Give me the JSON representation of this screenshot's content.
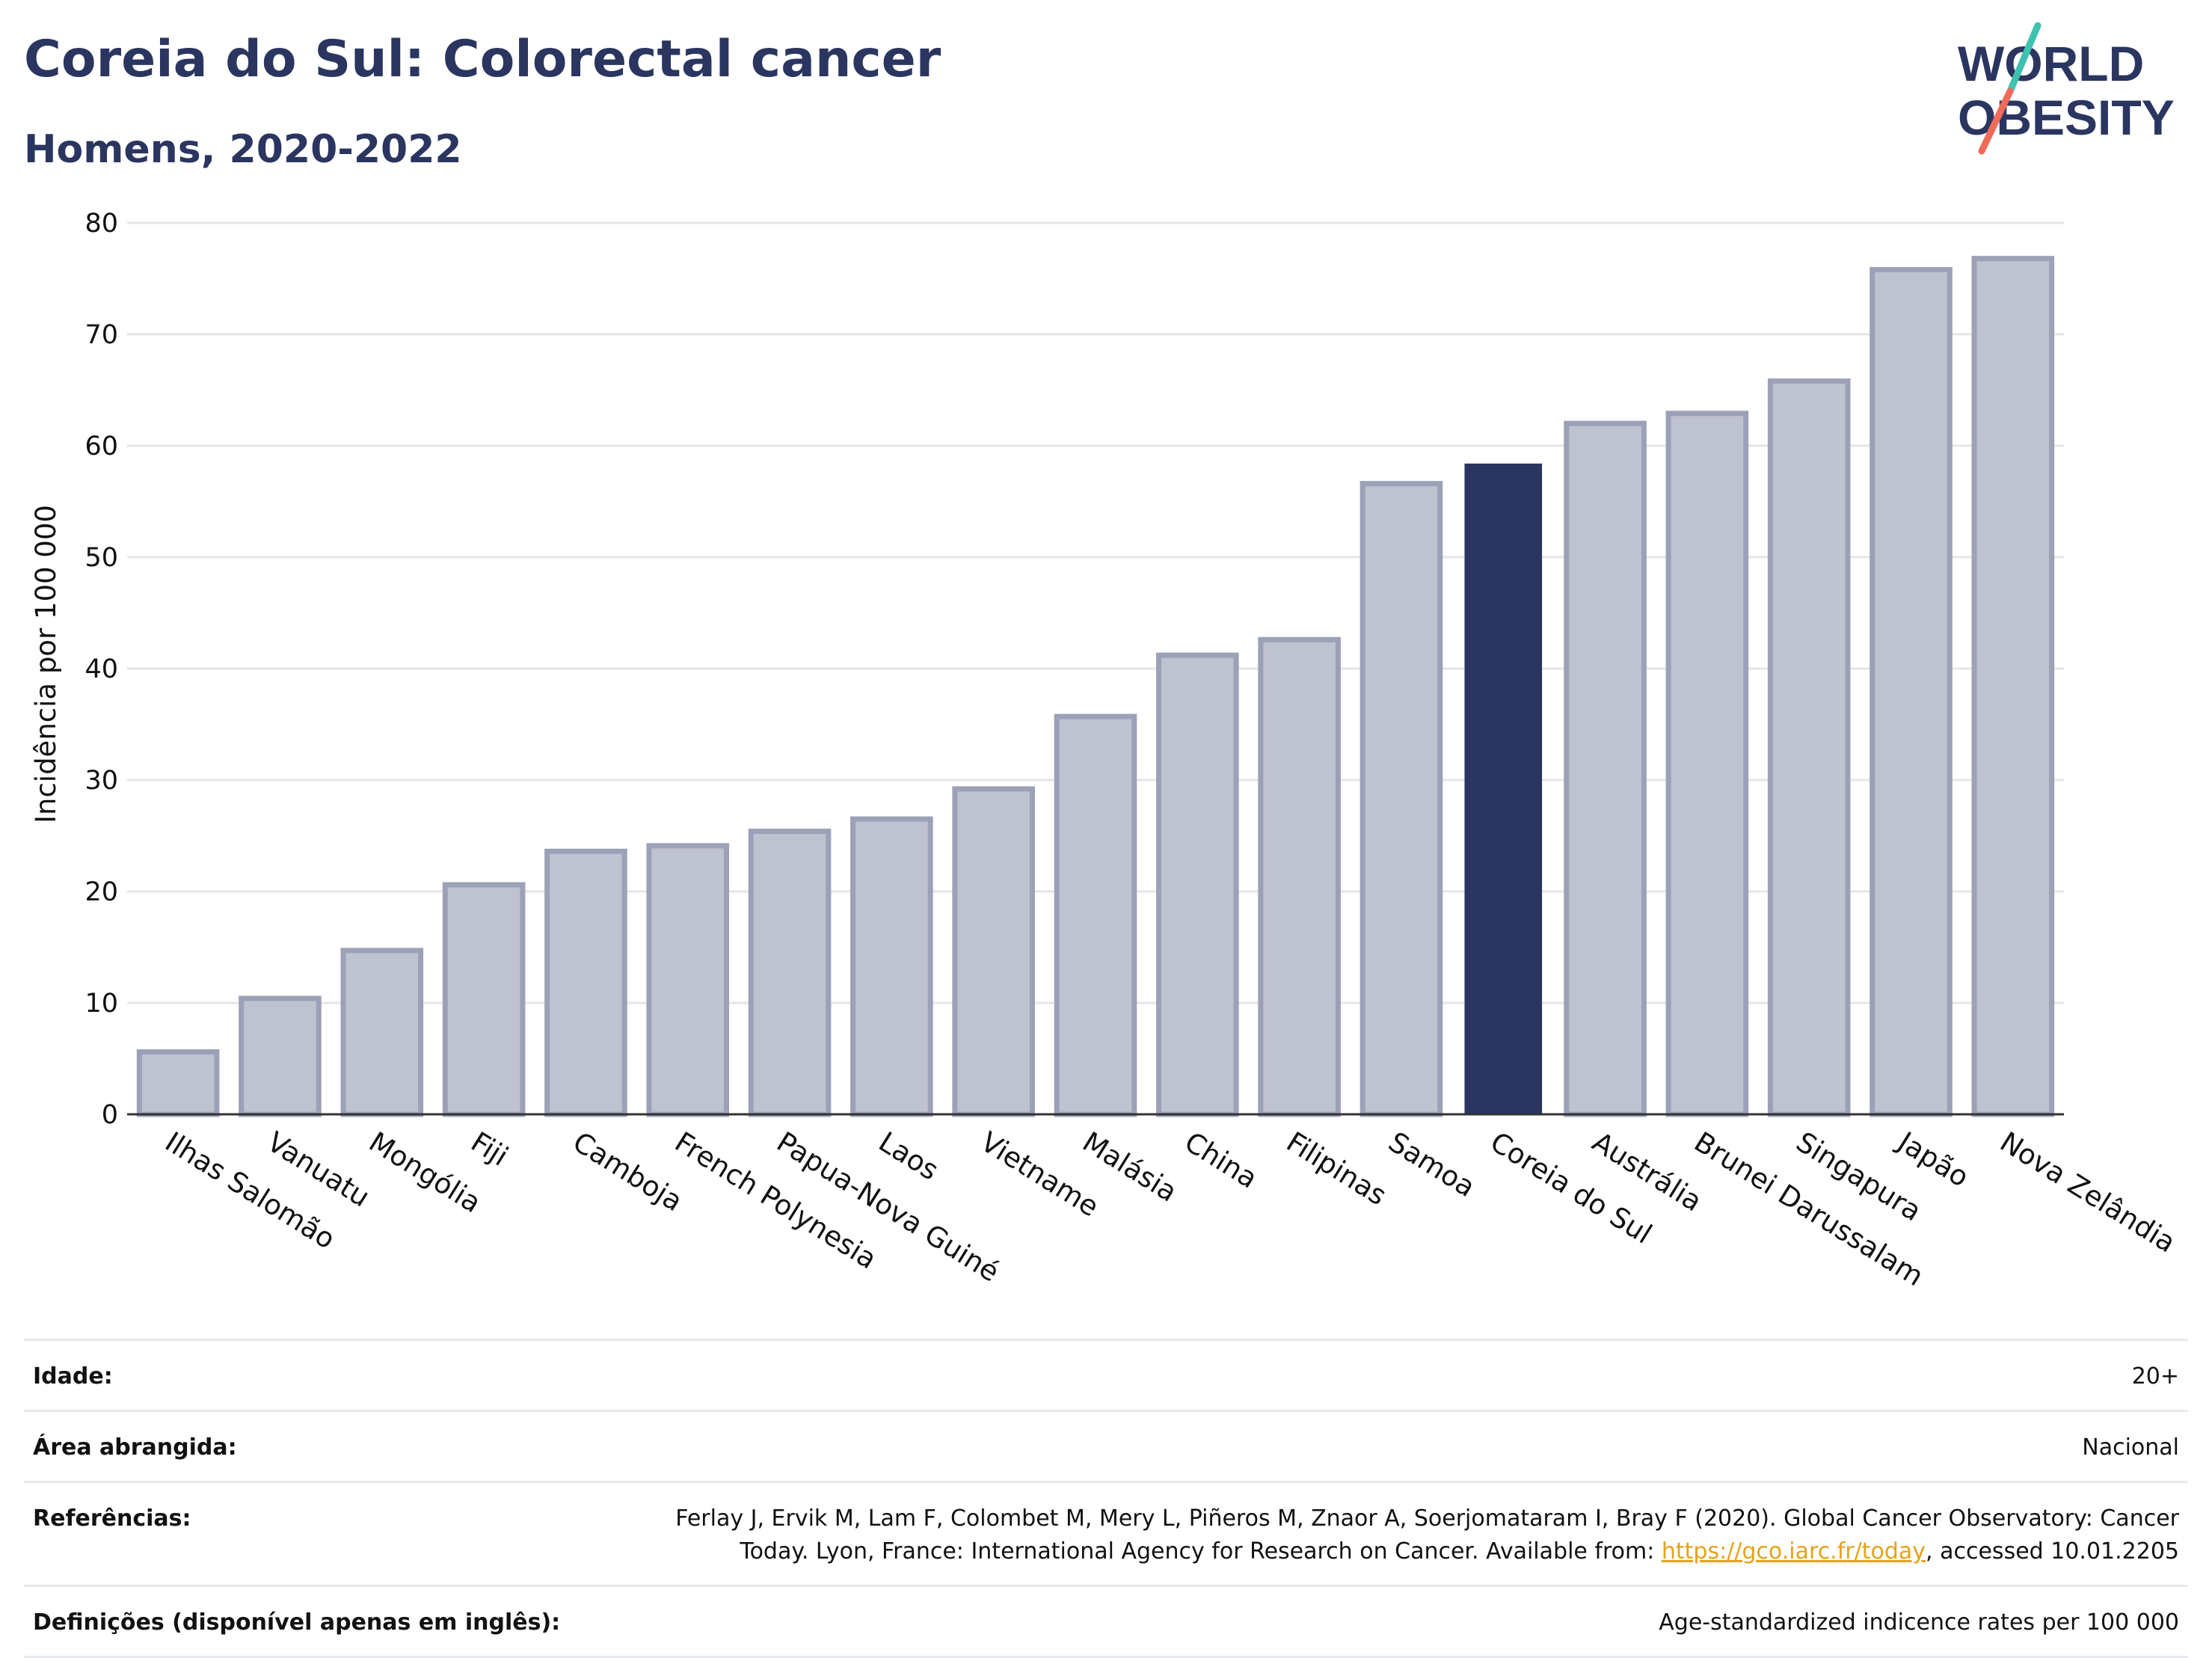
{
  "header": {
    "title": "Coreia do Sul: Colorectal cancer",
    "subtitle": "Homens, 2020-2022"
  },
  "logo": {
    "line1": "WORLD",
    "line2": "OBESITY",
    "colors": {
      "text": "#2a3560",
      "slash_top": "#3fc1b0",
      "slash_bottom": "#ef6b5a"
    }
  },
  "chart_data": {
    "type": "bar",
    "ylabel": "Incidência por 100 000",
    "ylim": [
      0,
      80
    ],
    "yticks": [
      0,
      10,
      20,
      30,
      40,
      50,
      60,
      70,
      80
    ],
    "grid": true,
    "categories": [
      "Ilhas Salomão",
      "Vanuatu",
      "Mongólia",
      "Fiji",
      "Camboja",
      "French Polynesia",
      "Papua-Nova Guiné",
      "Laos",
      "Vietname",
      "Malásia",
      "China",
      "Filipinas",
      "Samoa",
      "Coreia do Sul",
      "Austrália",
      "Brunei Darussalam",
      "Singapura",
      "Japão",
      "Nova Zelândia"
    ],
    "values": [
      5.6,
      10.4,
      14.7,
      20.6,
      23.6,
      24.1,
      25.4,
      26.5,
      29.2,
      35.7,
      41.2,
      42.6,
      56.6,
      58.4,
      62.0,
      62.9,
      65.8,
      75.8,
      76.8
    ],
    "highlight": "Coreia do Sul",
    "colors": {
      "bar": "#bfc2cf",
      "bar_border": "#9ca1b8",
      "highlight": "#2a3560",
      "grid": "#e6e6e6",
      "axis": "#333333"
    }
  },
  "info": {
    "rows": [
      {
        "label": "Idade:",
        "value": "20+"
      },
      {
        "label": "Área abrangida:",
        "value": "Nacional"
      },
      {
        "label": "Referências:",
        "value": "Ferlay J, Ervik M, Lam F, Colombet M, Mery L, Piñeros M, Znaor A, Soerjomataram I, Bray F (2020). Global Cancer Observatory: Cancer Today. Lyon, France: International Agency for Research on Cancer. Available from: ",
        "link": "https://gco.iarc.fr/today",
        "value_after": ", accessed 10.01.2205"
      },
      {
        "label": "Definições (disponível apenas em inglês):",
        "value": "Age-standardized indicence rates per 100 000"
      }
    ]
  }
}
